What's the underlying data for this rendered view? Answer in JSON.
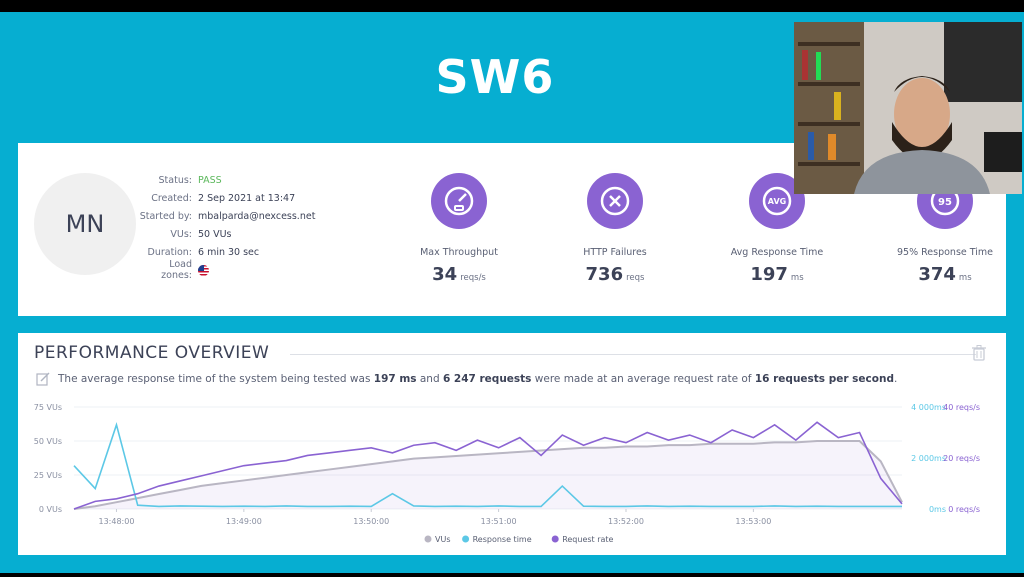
{
  "title": "SW6",
  "avatar_initials": "MN",
  "meta": [
    {
      "key": "Status:",
      "value": "PASS"
    },
    {
      "key": "Created:",
      "value": "2 Sep 2021 at 13:47"
    },
    {
      "key": "Started by:",
      "value": "mbalparda@nexcess.net"
    },
    {
      "key": "VUs:",
      "value": "50 VUs"
    },
    {
      "key": "Duration:",
      "value": "6 min 30 sec"
    },
    {
      "key": "Load zones:",
      "value": ""
    }
  ],
  "metrics": [
    {
      "label": "Max Throughput",
      "value": "34",
      "unit": "reqs/s",
      "icon": "gauge-icon"
    },
    {
      "label": "HTTP Failures",
      "value": "736",
      "unit": "reqs",
      "icon": "x-icon"
    },
    {
      "label": "Avg Response Time",
      "value": "197",
      "unit": "ms",
      "icon": "avg-icon",
      "icon_text": "AVG"
    },
    {
      "label": "95% Response Time",
      "value": "374",
      "unit": "ms",
      "icon": "percentile-icon",
      "icon_text": "95"
    }
  ],
  "overview": {
    "title": "PERFORMANCE OVERVIEW",
    "summary_pre": "The average response time of the system being tested was ",
    "summary_avg": "197 ms",
    "summary_mid": " and ",
    "summary_requests": "6 247 requests",
    "summary_mid2": " were made at an average request rate of ",
    "summary_rate": "16 requests per second",
    "summary_end": "."
  },
  "colors": {
    "accent": "#06aed1",
    "purple": "#8a63d2",
    "cyan": "#5cc8e6",
    "gray": "#b9b6c3"
  },
  "chart_data": {
    "type": "line",
    "x_ticks": [
      "13:48:00",
      "13:49:00",
      "13:50:00",
      "13:51:00",
      "13:52:00",
      "13:53:00"
    ],
    "y_left_ticks": [
      "0 VUs",
      "25 VUs",
      "50 VUs",
      "75 VUs"
    ],
    "y_right1_ticks": [
      "0ms",
      "2 000ms",
      "4 000ms"
    ],
    "y_right2_ticks": [
      "0 reqs/s",
      "20 reqs/s",
      "40 reqs/s"
    ],
    "ylim_vus": [
      0,
      75
    ],
    "ylim_ms": [
      0,
      4000
    ],
    "ylim_reqs": [
      0,
      40
    ],
    "x": [
      0,
      10,
      20,
      30,
      40,
      50,
      60,
      70,
      80,
      90,
      100,
      110,
      120,
      130,
      140,
      150,
      160,
      170,
      180,
      190,
      200,
      210,
      220,
      230,
      240,
      250,
      260,
      270,
      280,
      290,
      300,
      310,
      320,
      330,
      340,
      350,
      360,
      370,
      380,
      390
    ],
    "series": [
      {
        "name": "VUs",
        "values": [
          0,
          2,
          5,
          8,
          11,
          14,
          17,
          19,
          21,
          23,
          25,
          27,
          29,
          31,
          33,
          35,
          37,
          38,
          39,
          40,
          41,
          42,
          43,
          44,
          45,
          45,
          46,
          46,
          47,
          47,
          48,
          48,
          48,
          49,
          49,
          50,
          50,
          50,
          35,
          5
        ]
      },
      {
        "name": "Response time",
        "values": [
          1700,
          800,
          3300,
          150,
          100,
          120,
          110,
          100,
          110,
          100,
          120,
          100,
          100,
          110,
          100,
          600,
          120,
          100,
          110,
          100,
          120,
          100,
          100,
          900,
          110,
          100,
          100,
          120,
          100,
          110,
          100,
          100,
          100,
          120,
          100,
          110,
          100,
          100,
          100,
          100
        ]
      },
      {
        "name": "Request rate",
        "values": [
          0,
          3,
          4,
          6,
          9,
          11,
          13,
          15,
          17,
          18,
          19,
          21,
          22,
          23,
          24,
          22,
          25,
          26,
          23,
          27,
          24,
          28,
          21,
          29,
          25,
          28,
          26,
          30,
          27,
          29,
          26,
          31,
          28,
          33,
          27,
          34,
          28,
          30,
          12,
          2
        ]
      }
    ],
    "legend": [
      "VUs",
      "Response time",
      "Request rate"
    ],
    "legend_position": "bottom"
  }
}
